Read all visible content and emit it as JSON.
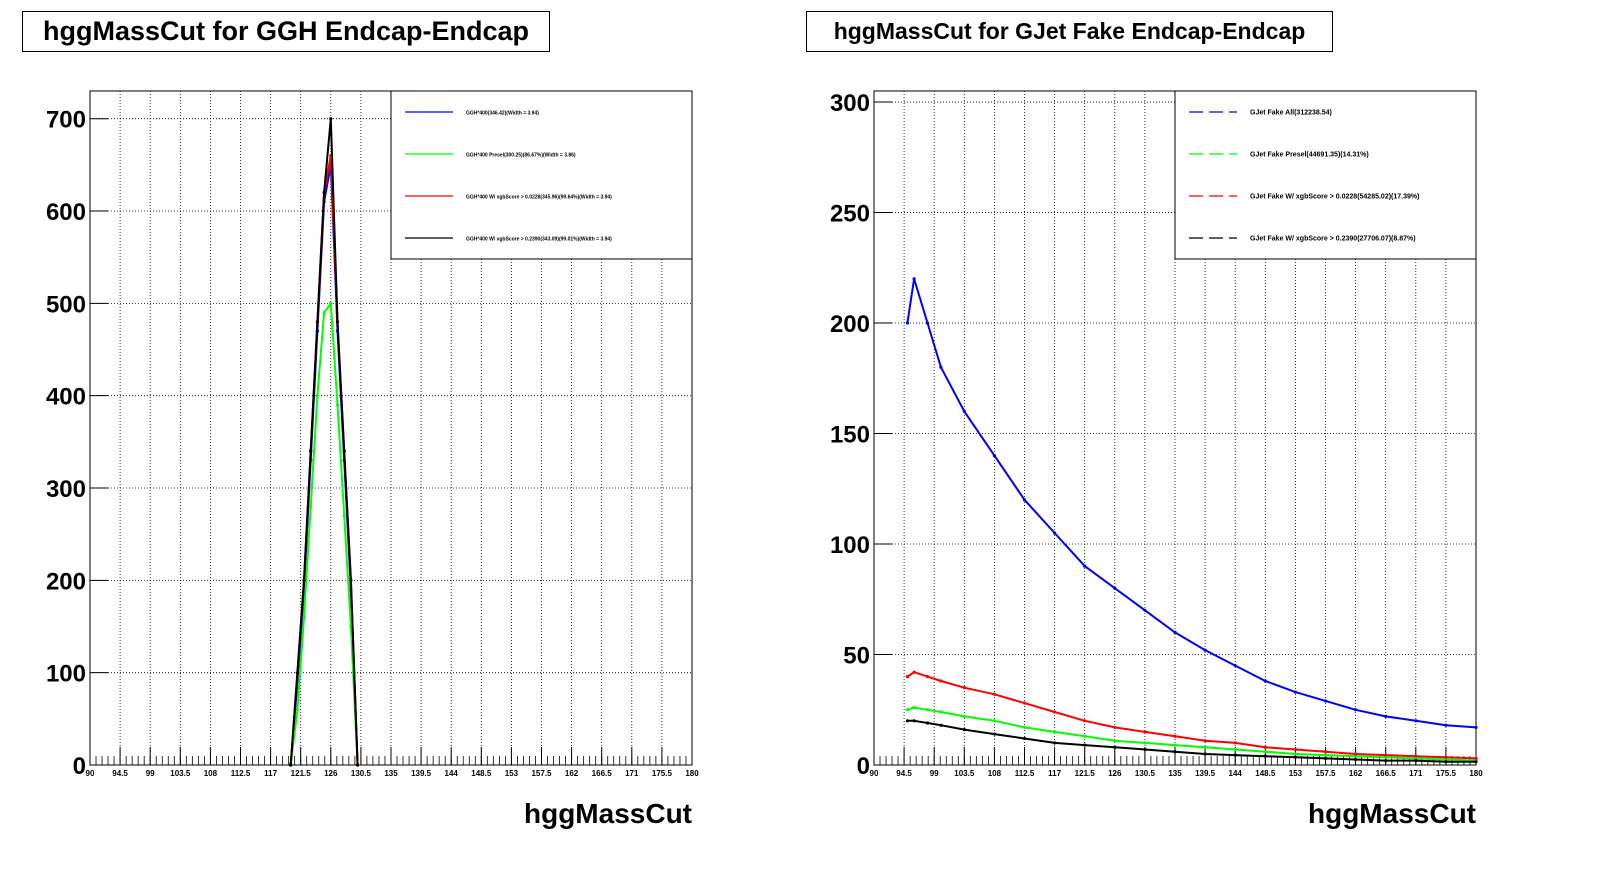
{
  "charts": [
    {
      "title": "hggMassCut for GGH Endcap-Endcap",
      "chart_data": {
        "type": "line",
        "title": "hggMassCut for GGH Endcap-Endcap",
        "xlabel": "hggMassCut",
        "ylabel": "",
        "xlim": [
          90,
          180
        ],
        "ylim": [
          0,
          730
        ],
        "x_ticks": [
          "90",
          "94.5",
          "99",
          "103.5",
          "108",
          "112.5",
          "117",
          "121.5",
          "126",
          "130.5",
          "135",
          "139.5",
          "144",
          "148.5",
          "153",
          "157.5",
          "162",
          "166.5",
          "171",
          "175.5",
          "180"
        ],
        "y_ticks": [
          0,
          100,
          200,
          300,
          400,
          500,
          600,
          700
        ],
        "y_tick_labels": [
          "0",
          "100",
          "200",
          "300",
          "400",
          "500",
          "600",
          "700"
        ],
        "grid": true,
        "legend_position": "top-right",
        "series": [
          {
            "name": "GGH*400(346.42)(Width = 3.94)",
            "color": "#0000ff",
            "x": [
              120,
              121,
              122,
              123,
              124,
              125,
              126,
              127,
              128,
              129,
              130
            ],
            "y": [
              0,
              90,
              190,
              330,
              470,
              610,
              650,
              470,
              330,
              190,
              0
            ]
          },
          {
            "name": "GGH*400 Presel(300.25)(86.67%)(Width = 3.86)",
            "color": "#00ff00",
            "x": [
              120,
              121,
              122,
              123,
              124,
              125,
              126,
              127,
              128,
              129,
              130
            ],
            "y": [
              0,
              60,
              160,
              280,
              400,
              490,
              500,
              390,
              270,
              150,
              0
            ]
          },
          {
            "name": "GGH*400 W/ xgbScore > 0.0228(345.96)(99.64%)(Width = 3.94)",
            "color": "#ff0000",
            "x": [
              120,
              121,
              122,
              123,
              124,
              125,
              126,
              127,
              128,
              129,
              130
            ],
            "y": [
              0,
              100,
              200,
              340,
              480,
              620,
              660,
              480,
              340,
              200,
              0
            ]
          },
          {
            "name": "GGH*400 W/ xgbScore > 0.2390(343.09)(99.01%)(Width = 3.94)",
            "color": "#000000",
            "x": [
              120,
              121,
              122,
              123,
              124,
              125,
              126,
              127,
              128,
              129,
              130
            ],
            "y": [
              0,
              100,
              200,
              340,
              480,
              620,
              700,
              480,
              340,
              200,
              0
            ]
          }
        ]
      }
    },
    {
      "title": "hggMassCut for GJet Fake Endcap-Endcap",
      "chart_data": {
        "type": "line",
        "title": "hggMassCut for GJet Fake Endcap-Endcap",
        "xlabel": "hggMassCut",
        "ylabel": "",
        "xlim": [
          90,
          180
        ],
        "ylim": [
          0,
          305
        ],
        "x_ticks": [
          "90",
          "94.5",
          "99",
          "103.5",
          "108",
          "112.5",
          "117",
          "121.5",
          "126",
          "130.5",
          "135",
          "139.5",
          "144",
          "148.5",
          "153",
          "157.5",
          "162",
          "166.5",
          "171",
          "175.5",
          "180"
        ],
        "y_ticks": [
          0,
          50,
          100,
          150,
          200,
          250,
          300
        ],
        "y_tick_labels": [
          "0",
          "50",
          "100",
          "150",
          "200",
          "250",
          "300"
        ],
        "grid": true,
        "legend_position": "top-right",
        "series": [
          {
            "name": "GJet Fake All(312238.54)",
            "color": "#0000ff",
            "x": [
              95,
              96,
              98,
              100,
              103.5,
              108,
              112.5,
              117,
              121.5,
              126,
              130.5,
              135,
              139.5,
              144,
              148.5,
              153,
              157.5,
              162,
              166.5,
              171,
              175.5,
              180
            ],
            "y": [
              200,
              220,
              200,
              180,
              160,
              140,
              120,
              105,
              90,
              80,
              70,
              60,
              52,
              45,
              38,
              33,
              29,
              25,
              22,
              20,
              18,
              17
            ]
          },
          {
            "name": "GJet Fake Presel(44691.35)(14.31%)",
            "color": "#00ff00",
            "x": [
              95,
              96,
              98,
              100,
              103.5,
              108,
              112.5,
              117,
              121.5,
              126,
              130.5,
              135,
              139.5,
              144,
              148.5,
              153,
              157.5,
              162,
              166.5,
              171,
              175.5,
              180
            ],
            "y": [
              25,
              26,
              25,
              24,
              22,
              20,
              17,
              15,
              13,
              11,
              10,
              9,
              8,
              7,
              6,
              5,
              4.5,
              4,
              3.5,
              3,
              2.5,
              2
            ]
          },
          {
            "name": "GJet Fake W/ xgbScore > 0.0228(54285.02)(17.39%)",
            "color": "#ff0000",
            "x": [
              95,
              96,
              98,
              100,
              103.5,
              108,
              112.5,
              117,
              121.5,
              126,
              130.5,
              135,
              139.5,
              144,
              148.5,
              153,
              157.5,
              162,
              166.5,
              171,
              175.5,
              180
            ],
            "y": [
              40,
              42,
              40,
              38,
              35,
              32,
              28,
              24,
              20,
              17,
              15,
              13,
              11,
              10,
              8,
              7,
              6,
              5,
              4.5,
              4,
              3.5,
              3
            ]
          },
          {
            "name": "GJet Fake W/ xgbScore > 0.2390(27706.07)(8.87%)",
            "color": "#000000",
            "x": [
              95,
              96,
              98,
              100,
              103.5,
              108,
              112.5,
              117,
              121.5,
              126,
              130.5,
              135,
              139.5,
              144,
              148.5,
              153,
              157.5,
              162,
              166.5,
              171,
              175.5,
              180
            ],
            "y": [
              20,
              20,
              19,
              18,
              16,
              14,
              12,
              10,
              9,
              8,
              7,
              6,
              5,
              4.5,
              4,
              3.5,
              3,
              2.5,
              2,
              2,
              1.5,
              1.5
            ]
          }
        ]
      }
    }
  ]
}
